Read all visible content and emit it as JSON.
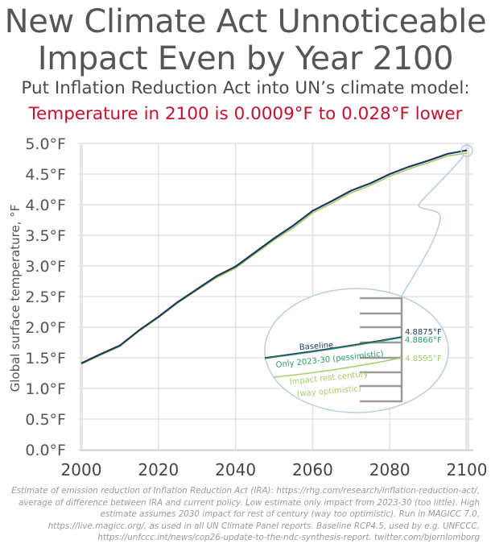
{
  "header": {
    "title_line1": "New Climate Act Unnoticeable",
    "title_line2": "Impact Even by Year 2100",
    "subtitle": "Put Inflation Reduction Act into UN’s climate model:",
    "highlight": "Temperature in 2100 is 0.0009°F to 0.028°F lower"
  },
  "colors": {
    "title": "#565656",
    "highlight": "#c8102e",
    "baseline": "#1f3a5f",
    "pessimistic": "#2e9b6a",
    "optimistic": "#a8cc6a",
    "callout": "#b8cfe0",
    "grid": "#e2e2e2"
  },
  "chart_data": {
    "type": "line",
    "title": "New Climate Act Unnoticeable Impact Even by Year 2100",
    "xlabel": "",
    "ylabel": "Global surface temperature, °F",
    "xlim": [
      2000,
      2100
    ],
    "ylim": [
      0,
      5
    ],
    "grid": true,
    "x_ticks": [
      "2000",
      "2020",
      "2040",
      "2060",
      "2080",
      "2100"
    ],
    "x_tick_values": [
      2000,
      2020,
      2040,
      2060,
      2080,
      2100
    ],
    "y_ticks": [
      "0.0°F",
      "0.5°F",
      "1.0°F",
      "1.5°F",
      "2.0°F",
      "2.5°F",
      "3.0°F",
      "3.5°F",
      "4.0°F",
      "4.5°F",
      "5.0°F"
    ],
    "y_tick_values": [
      0,
      0.5,
      1.0,
      1.5,
      2.0,
      2.5,
      3.0,
      3.5,
      4.0,
      4.5,
      5.0
    ],
    "x": [
      2000,
      2005,
      2010,
      2015,
      2020,
      2025,
      2030,
      2035,
      2040,
      2045,
      2050,
      2055,
      2060,
      2065,
      2070,
      2075,
      2080,
      2085,
      2090,
      2095,
      2100
    ],
    "series": [
      {
        "name": "Baseline",
        "values": [
          1.41,
          1.56,
          1.7,
          1.95,
          2.17,
          2.41,
          2.62,
          2.83,
          2.99,
          3.22,
          3.45,
          3.66,
          3.9,
          4.06,
          4.23,
          4.35,
          4.5,
          4.62,
          4.72,
          4.83,
          4.8875
        ]
      },
      {
        "name": "Only 2023-30 (pessimistic)",
        "values": [
          1.41,
          1.56,
          1.7,
          1.95,
          2.17,
          2.41,
          2.62,
          2.83,
          2.99,
          3.22,
          3.45,
          3.66,
          3.9,
          4.06,
          4.23,
          4.35,
          4.5,
          4.62,
          4.72,
          4.83,
          4.8866
        ]
      },
      {
        "name": "Impact rest century (way optimistic)",
        "values": [
          1.41,
          1.56,
          1.7,
          1.95,
          2.17,
          2.41,
          2.62,
          2.82,
          2.98,
          3.21,
          3.44,
          3.64,
          3.88,
          4.04,
          4.21,
          4.33,
          4.48,
          4.6,
          4.7,
          4.81,
          4.8595
        ]
      }
    ],
    "inset": {
      "labels": [
        "Baseline",
        "Only 2023-30 (pessimistic)",
        "Impact rest century",
        "(way optimistic)"
      ],
      "end_values": [
        "4.8875°F",
        "4.8866°F",
        "4.8595°F"
      ]
    }
  },
  "footnote": "Estimate of emission reduction of Inflation Reduction Act (IRA): https://rhg.com/research/inflation-reduction-act/, average of difference between IRA and current policy. Low estimate only impact from 2023-30 (too little). High estimate assumes 2030 impact for rest of century (way too optimistic). Run in MAGICC 7.0, https://live.magicc.org/, as used in all UN Climate Panel reports. Baseline RCP4.5, used by e.g. UNFCCC, https://unfccc.int/news/cop26-update-to-the-ndc-synthesis-report. twitter.com/bjornlomborg"
}
